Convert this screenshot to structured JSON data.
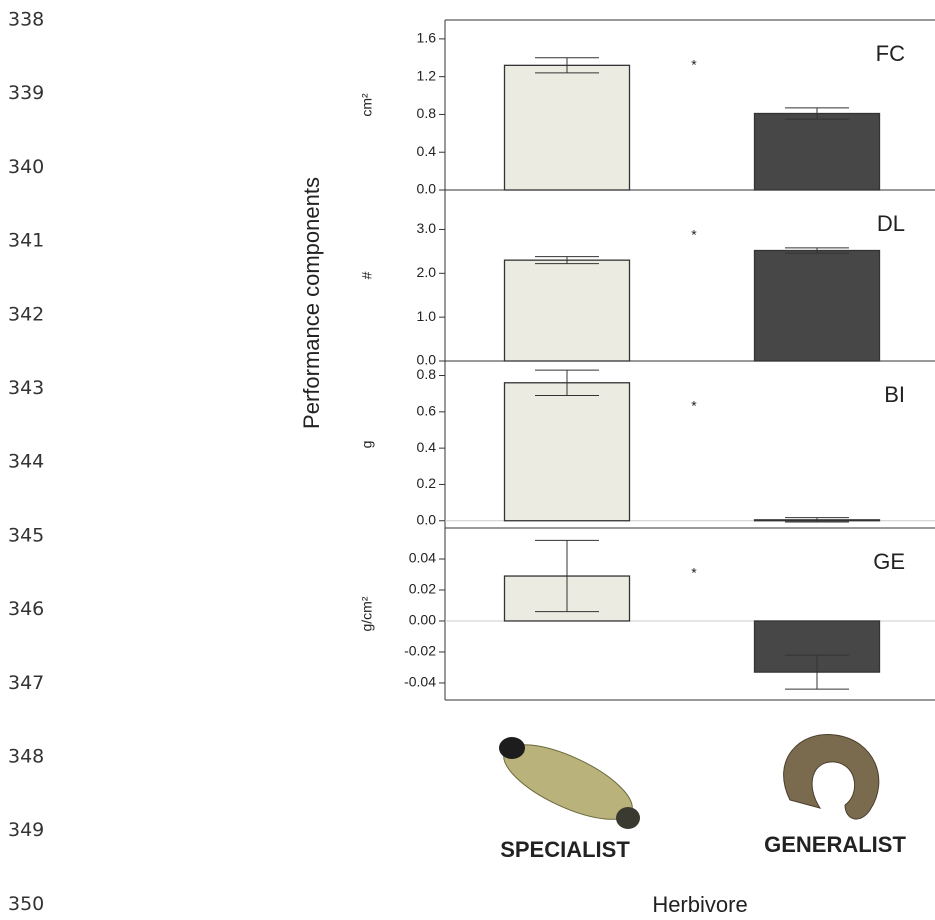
{
  "line_numbers": [
    "338",
    "339",
    "340",
    "341",
    "342",
    "343",
    "344",
    "345",
    "346",
    "347",
    "348",
    "349",
    "350"
  ],
  "figure": {
    "ylabel": "Performance components",
    "xlabel": "Herbivore",
    "categories": [
      "SPECIALIST",
      "GENERALIST"
    ],
    "colors": [
      "#ebebe2",
      "#474747"
    ]
  },
  "chart_data": [
    {
      "type": "bar",
      "title": "FC",
      "ylabel": "cm²",
      "annotation": "*",
      "values": [
        1.32,
        0.81
      ],
      "errors": [
        0.08,
        0.06
      ],
      "ylim": [
        0,
        1.8
      ],
      "yticks": [
        {
          "value": 0,
          "label": "0.0"
        },
        0.4,
        0.8,
        1.2,
        1.6
      ]
    },
    {
      "type": "bar",
      "title": "DL",
      "ylabel": "#",
      "annotation": "*",
      "values": [
        2.3,
        2.52
      ],
      "errors": [
        0.08,
        0.06
      ],
      "ylim": [
        0,
        3.9
      ],
      "yticks": [
        {
          "value": 0,
          "label": "0.0"
        },
        {
          "value": 1,
          "label": "1.0"
        },
        {
          "value": 2,
          "label": "2.0"
        },
        {
          "value": 3,
          "label": "3.0"
        }
      ]
    },
    {
      "type": "bar",
      "title": "BI",
      "ylabel": "g",
      "annotation": "*",
      "values": [
        0.76,
        0.005
      ],
      "errors": [
        0.07,
        0.012
      ],
      "ylim": [
        -0.04,
        0.88
      ],
      "yticks": [
        {
          "value": 0,
          "label": "0.0"
        },
        0.2,
        0.4,
        0.6,
        0.8
      ]
    },
    {
      "type": "bar",
      "title": "GE",
      "ylabel": "g/cm²",
      "annotation": "*",
      "values": [
        0.029,
        -0.033
      ],
      "errors": [
        0.023,
        0.011
      ],
      "ylim": [
        -0.051,
        0.06
      ],
      "yticks": [
        {
          "value": -0.04,
          "label": "-0.04"
        },
        {
          "value": -0.02,
          "label": "-0.02"
        },
        {
          "value": 0,
          "label": "0.00"
        },
        0.02,
        0.04
      ]
    }
  ]
}
